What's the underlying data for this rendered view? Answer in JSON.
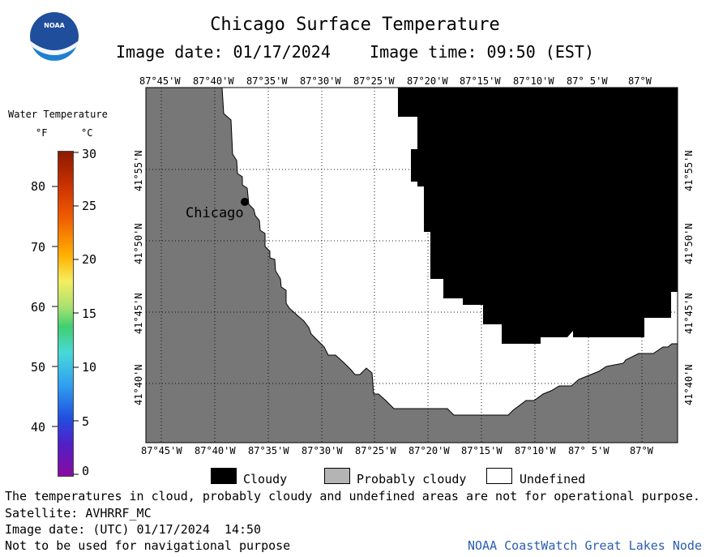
{
  "header": {
    "title": "Chicago Surface Temperature",
    "subtitle": "Image date: 01/17/2024    Image time: 09:50 (EST)"
  },
  "logo": {
    "text": "NOAA"
  },
  "map": {
    "city_label": "Chicago",
    "lon_ticks": [
      "87°45'W",
      "87°40'W",
      "87°35'W",
      "87°30'W",
      "87°25'W",
      "87°20'W",
      "87°15'W",
      "87°10'W",
      "87° 5'W",
      "87°W"
    ],
    "lat_ticks": [
      "41°55'N",
      "41°50'N",
      "41°45'N",
      "41°40'N"
    ],
    "colors": {
      "land": "#777777",
      "cloudy": "#000000",
      "undefined": "#ffffff"
    }
  },
  "color_scale": {
    "title": "Water Temperature",
    "unit_f": "°F",
    "unit_c": "°C",
    "f_labels": [
      "80",
      "70",
      "60",
      "50",
      "40"
    ],
    "c_labels": [
      "30",
      "25",
      "20",
      "15",
      "10",
      "5",
      "0"
    ]
  },
  "key": {
    "items": [
      {
        "label": "Cloudy",
        "color": "#000000"
      },
      {
        "label": "Probably cloudy",
        "color": "#b4b4b4"
      },
      {
        "label": "Undefined",
        "color": "#ffffff"
      }
    ]
  },
  "footer": {
    "note": "The temperatures in cloud, probably cloudy and undefined areas are not for operational purpose.",
    "satellite": "Satellite: AVHRRF_MC",
    "utc_date": "Image date: (UTC) 01/17/2024  14:50",
    "nav": "Not to be used for navigational purpose",
    "credit": "NOAA CoastWatch Great Lakes Node"
  }
}
